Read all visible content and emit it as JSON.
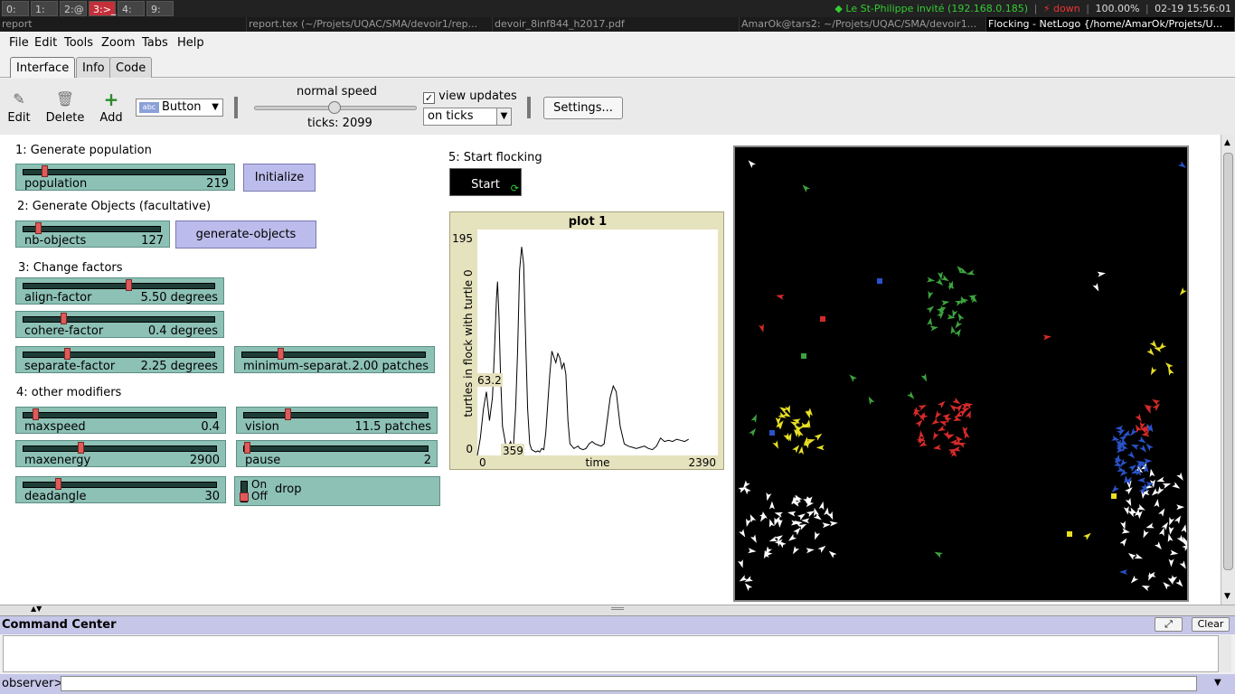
{
  "os_bar": {
    "workspaces": [
      "0:",
      "1:",
      "2:@",
      "3:>_",
      "4:",
      "9:"
    ],
    "network": "Le St-Philippe invité (192.168.0.185)",
    "vpn": "down",
    "battery": "100.00%",
    "clock": "02-19 15:56:01"
  },
  "taskbar": [
    "report",
    "report.tex (~/Projets/UQAC/SMA/devoir1/rep...",
    "devoir_8inf844_h2017.pdf",
    "AmarOk@tars2: ~/Projets/UQAC/SMA/devoir1...",
    "Flocking - NetLogo {/home/AmarOk/Projets/U..."
  ],
  "menu": [
    "File",
    "Edit",
    "Tools",
    "Zoom",
    "Tabs",
    "Help"
  ],
  "tabs": [
    "Interface",
    "Info",
    "Code"
  ],
  "toolbar": {
    "edit": "Edit",
    "delete": "Delete",
    "add": "Add",
    "widget_type": "Button",
    "speed_label": "normal speed",
    "ticks_label": "ticks: 2099",
    "view_updates": "view updates",
    "update_mode": "on ticks",
    "settings": "Settings..."
  },
  "notes": {
    "n1": "1: Generate population",
    "n2": "2: Generate Objects (facultative)",
    "n3": "3: Change factors",
    "n4": "4: other modifiers",
    "n5": "5: Start flocking"
  },
  "sliders": [
    {
      "label": "population",
      "value": "219",
      "fraction": 0.09
    },
    {
      "label": "nb-objects",
      "value": "127",
      "fraction": 0.09
    },
    {
      "label": "align-factor",
      "value": "5.50 degrees",
      "fraction": 0.55
    },
    {
      "label": "cohere-factor",
      "value": "0.4 degrees",
      "fraction": 0.2
    },
    {
      "label": "separate-factor",
      "value": "2.25 degrees",
      "fraction": 0.22
    },
    {
      "label": "minimum-separat...",
      "value": "2.00 patches",
      "fraction": 0.2
    },
    {
      "label": "maxspeed",
      "value": "0.4",
      "fraction": 0.05
    },
    {
      "label": "vision",
      "value": "11.5 patches",
      "fraction": 0.23
    },
    {
      "label": "maxenergy",
      "value": "2900",
      "fraction": 0.29
    },
    {
      "label": "pause",
      "value": "2",
      "fraction": 0.0
    },
    {
      "label": "deadangle",
      "value": "30",
      "fraction": 0.17
    }
  ],
  "buttons": {
    "initialize": "Initialize",
    "generate_objects": "generate-objects",
    "start": "Start"
  },
  "switch": {
    "on": "On",
    "off": "Off",
    "label": "drop"
  },
  "chart_data": {
    "type": "line",
    "title": "plot 1",
    "xlabel": "time",
    "ylabel": "turtles in flock with turtle 0",
    "xlim": [
      0,
      2390
    ],
    "ylim": [
      0,
      195
    ],
    "x_min_label": "0",
    "x_max_label": "2390",
    "y_min_label": "0",
    "y_max_label": "195",
    "hover_x": "359",
    "hover_y": "63.2",
    "line_color": "#000000",
    "series": [
      {
        "x": [
          0,
          30,
          60,
          90,
          120,
          150,
          170,
          190,
          200,
          215,
          230,
          250,
          270,
          290,
          310,
          330,
          350,
          360,
          380,
          400,
          420,
          440,
          460,
          480,
          500,
          520,
          540,
          560,
          580,
          600,
          620,
          640,
          660,
          680,
          700,
          720,
          740,
          760,
          780,
          800,
          820,
          840,
          860,
          880,
          900,
          920,
          940,
          960,
          980,
          1000,
          1020,
          1050,
          1080,
          1110,
          1140,
          1170,
          1200,
          1230,
          1260,
          1290,
          1320,
          1350,
          1380,
          1420,
          1460,
          1500,
          1540,
          1580,
          1620,
          1660,
          1700,
          1740,
          1780,
          1820,
          1860,
          1900,
          1940,
          1980,
          2020,
          2060,
          2100
        ],
        "y": [
          0,
          15,
          40,
          55,
          30,
          50,
          90,
          135,
          150,
          120,
          70,
          25,
          15,
          5,
          8,
          12,
          6,
          10,
          40,
          90,
          160,
          180,
          165,
          100,
          40,
          10,
          5,
          4,
          3,
          4,
          3,
          6,
          5,
          20,
          45,
          70,
          90,
          85,
          80,
          88,
          84,
          75,
          80,
          70,
          30,
          10,
          8,
          6,
          7,
          8,
          6,
          5,
          6,
          10,
          12,
          10,
          9,
          8,
          10,
          30,
          50,
          60,
          55,
          25,
          10,
          8,
          7,
          6,
          7,
          8,
          6,
          5,
          8,
          15,
          12,
          13,
          12,
          14,
          13,
          12,
          14
        ]
      }
    ]
  },
  "world": {
    "background": "#000000",
    "colors": {
      "white": "#ffffff",
      "green": "#3da33d",
      "red": "#d62a2a",
      "yellow": "#e8e024",
      "blue": "#2a52c8"
    }
  },
  "command_center": {
    "title": "Command Center",
    "clear": "Clear",
    "prompt": "observer>"
  }
}
